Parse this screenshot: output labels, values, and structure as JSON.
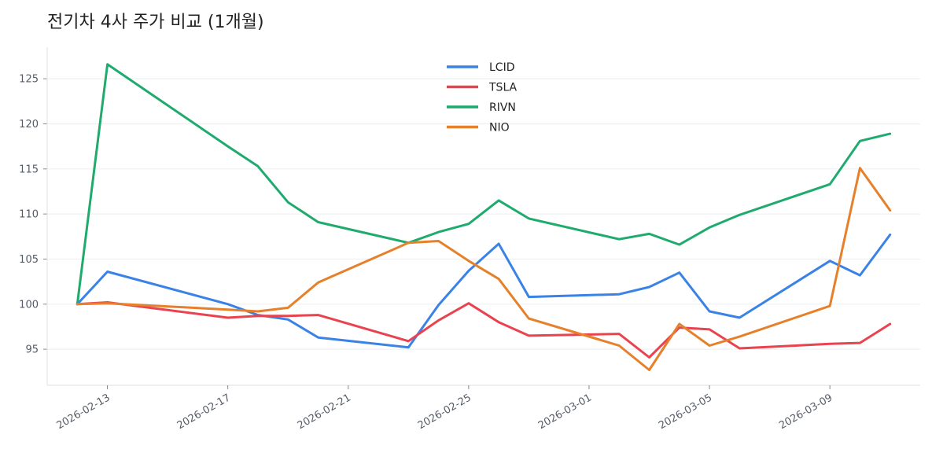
{
  "chart_data": {
    "type": "line",
    "title": "전기차 4사 주가 비교 (1개월)",
    "xlabel": "",
    "ylabel": "",
    "x": [
      "2026-02-12",
      "2026-02-13",
      "2026-02-17",
      "2026-02-18",
      "2026-02-19",
      "2026-02-20",
      "2026-02-23",
      "2026-02-24",
      "2026-02-25",
      "2026-02-26",
      "2026-02-27",
      "2026-03-02",
      "2026-03-03",
      "2026-03-04",
      "2026-03-05",
      "2026-03-06",
      "2026-03-09",
      "2026-03-10",
      "2026-03-11"
    ],
    "x_ticks": [
      "2026-02-13",
      "2026-02-17",
      "2026-02-21",
      "2026-02-25",
      "2026-03-01",
      "2026-03-05",
      "2026-03-09"
    ],
    "y_ticks": [
      95,
      100,
      105,
      110,
      115,
      120,
      125
    ],
    "xlim": [
      "2026-02-11",
      "2026-03-12"
    ],
    "ylim": [
      91,
      128.5
    ],
    "grid": "horizontal",
    "legend_position": "top-center",
    "series": [
      {
        "name": "LCID",
        "color": "#3b82e6",
        "values": [
          100.0,
          103.6,
          100.0,
          98.8,
          98.3,
          96.3,
          95.2,
          99.9,
          103.7,
          106.7,
          100.8,
          101.1,
          101.9,
          103.5,
          99.2,
          98.5,
          104.8,
          103.2,
          107.7
        ]
      },
      {
        "name": "TSLA",
        "color": "#e8434f",
        "values": [
          100.0,
          100.2,
          98.5,
          98.7,
          98.7,
          98.8,
          95.9,
          98.2,
          100.1,
          98.0,
          96.5,
          96.7,
          94.1,
          97.4,
          97.2,
          95.1,
          95.6,
          95.7,
          97.8
        ]
      },
      {
        "name": "RIVN",
        "color": "#1faa6e",
        "values": [
          100.0,
          126.6,
          117.5,
          115.3,
          111.3,
          109.1,
          106.8,
          108.0,
          108.9,
          111.5,
          109.5,
          107.2,
          107.8,
          106.6,
          108.5,
          109.9,
          113.3,
          118.1,
          118.9
        ]
      },
      {
        "name": "NIO",
        "color": "#e6802a",
        "values": [
          100.0,
          100.1,
          99.4,
          99.2,
          99.6,
          102.4,
          106.8,
          107.0,
          104.8,
          102.8,
          98.4,
          95.4,
          92.7,
          97.8,
          95.4,
          96.4,
          99.8,
          115.1,
          110.4
        ]
      }
    ]
  }
}
